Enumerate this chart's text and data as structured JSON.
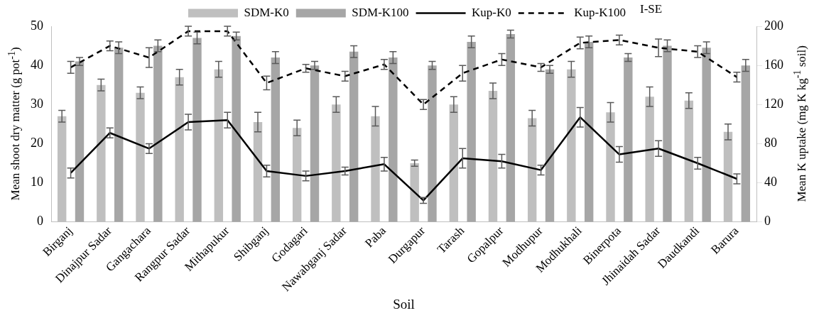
{
  "chart_data": {
    "type": "bar",
    "categories": [
      "Birganj",
      "Dinajpur Sadar",
      "Gangachara",
      "Rangpur Sadar",
      "Mithapukur",
      "Shibganj",
      "Godagari",
      "Nawabganj Sadar",
      "Paba",
      "Durgapur",
      "Tarash",
      "Gopalpur",
      "Modhupur",
      "Modhukhali",
      "Binerpota",
      "Jhinaidah Sadar",
      "Daudkandi",
      "Barura"
    ],
    "series": [
      {
        "name": "SDM-K0",
        "color": "#bfbfbf",
        "values": [
          27,
          35,
          33,
          37,
          39,
          25.5,
          24,
          30,
          27,
          15,
          30,
          33.5,
          26.5,
          39,
          28,
          32,
          31,
          23
        ],
        "errors": [
          1.5,
          1.5,
          1.5,
          2,
          2,
          2.5,
          2,
          2,
          2.5,
          0.8,
          2,
          2,
          2,
          2,
          2.5,
          2.5,
          2,
          2
        ]
      },
      {
        "name": "SDM-K100",
        "color": "#a6a6a6",
        "values": [
          41,
          44.5,
          45,
          47,
          47.5,
          42,
          40,
          43.5,
          42,
          40,
          46,
          48,
          39,
          46,
          42,
          45,
          44.5,
          40
        ],
        "errors": [
          1,
          1.5,
          1.5,
          1.5,
          1,
          1.5,
          1,
          1.5,
          1.5,
          1,
          1.5,
          1,
          1,
          1.5,
          1,
          1.5,
          1.5,
          1.5
        ]
      },
      {
        "name": "Kup-K0",
        "type": "line",
        "axis": "y2",
        "color": "#000000",
        "line_style": "solid",
        "values": [
          50,
          91,
          75,
          102,
          104,
          52,
          47,
          52,
          59,
          22,
          65,
          62,
          53,
          107,
          69,
          75,
          60,
          44
        ],
        "errors": [
          5,
          5,
          5,
          8,
          8,
          6,
          5,
          4,
          7,
          3,
          10,
          7,
          5,
          10,
          8,
          8,
          6,
          5
        ]
      },
      {
        "name": "Kup-K100",
        "type": "line",
        "axis": "y2",
        "color": "#000000",
        "line_style": "dashed",
        "values": [
          158,
          180,
          168,
          195,
          195,
          142,
          157,
          149,
          161,
          120,
          152,
          166,
          158,
          183,
          186,
          178,
          174,
          148
        ],
        "errors": [
          6,
          5,
          10,
          5,
          5,
          7,
          4,
          5,
          5,
          5,
          8,
          6,
          4,
          6,
          5,
          9,
          6,
          5
        ]
      }
    ],
    "xlabel": "Soil",
    "ylabel": "Mean shoot dry matter (g pot$^{-1}$)",
    "y2label": "Mean K uptake (mg K kg$^{-1}$ soil)",
    "ylim": [
      0,
      50
    ],
    "yticks": [
      0,
      10,
      20,
      30,
      40,
      50
    ],
    "y2lim": [
      0,
      200
    ],
    "y2ticks": [
      0,
      40,
      80,
      120,
      160,
      200
    ],
    "annotations": [
      "I-SE"
    ],
    "legend": "top",
    "grid": false
  }
}
